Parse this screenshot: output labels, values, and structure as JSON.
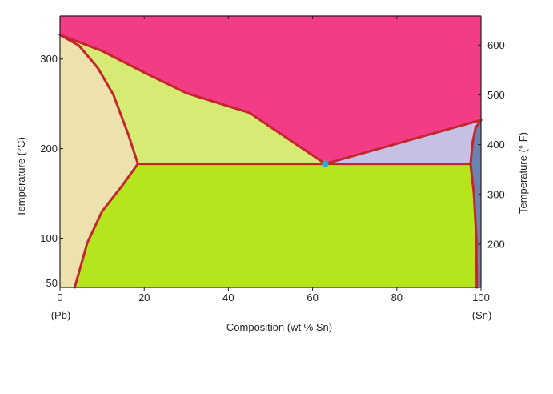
{
  "chart_data": {
    "type": "phase-diagram",
    "title": "",
    "xlabel": "Composition (wt % Sn)",
    "ylabel_left": "Temperature (°C)",
    "ylabel_right": "Temperature (° F)",
    "xlim": [
      0,
      100
    ],
    "ylim_celsius": [
      45,
      348
    ],
    "x_ticks": [
      "0",
      "20",
      "40",
      "60",
      "80",
      "100"
    ],
    "x_tick_values": [
      0,
      20,
      40,
      60,
      80,
      100
    ],
    "y_ticks_celsius": [
      "50",
      "100",
      "200",
      "300"
    ],
    "y_tick_values_celsius": [
      50,
      100,
      200,
      300
    ],
    "y_ticks_fahrenheit": [
      "200",
      "300",
      "400",
      "500",
      "600"
    ],
    "y_tick_values_fahrenheit": [
      200,
      300,
      400,
      500,
      600
    ],
    "endpoint_labels": {
      "left": "(Pb)",
      "right": "(Sn)"
    },
    "grid": false,
    "colors": {
      "liquid": "#f43b86",
      "alpha": "#ede1ae",
      "alpha_plus_liquid": "#d5eb74",
      "beta_plus_liquid": "#c6c1e4",
      "beta": "#6c82b0",
      "alpha_plus_beta": "#b5e61d",
      "boundary": "#c1272d",
      "eutectic_point": "#29abe2",
      "frame": "#231f20"
    },
    "key_points": {
      "pb_melting": {
        "composition": 0,
        "temperature_c": 327
      },
      "sn_melting": {
        "composition": 100,
        "temperature_c": 232
      },
      "eutectic": {
        "composition": 63,
        "temperature_c": 183
      },
      "alpha_max_solubility": {
        "composition": 18.5,
        "temperature_c": 183
      },
      "beta_max_solubility": {
        "composition": 97.5,
        "temperature_c": 183
      }
    },
    "regions": {
      "liquid": [
        [
          0,
          327
        ],
        [
          0,
          348
        ],
        [
          100,
          348
        ],
        [
          100,
          232
        ],
        [
          63,
          183
        ],
        [
          45,
          240
        ],
        [
          30,
          262
        ],
        [
          20,
          285
        ],
        [
          10,
          309
        ],
        [
          0,
          327
        ]
      ],
      "alpha_plus_liquid": [
        [
          0,
          327
        ],
        [
          10,
          309
        ],
        [
          20,
          285
        ],
        [
          30,
          262
        ],
        [
          45,
          240
        ],
        [
          63,
          183
        ],
        [
          18.5,
          183
        ],
        [
          16.3,
          215
        ],
        [
          12.7,
          260
        ],
        [
          9,
          290
        ],
        [
          4.5,
          315
        ],
        [
          0,
          327
        ]
      ],
      "alpha": [
        [
          0,
          327
        ],
        [
          4.5,
          315
        ],
        [
          9,
          290
        ],
        [
          12.7,
          260
        ],
        [
          16.3,
          215
        ],
        [
          18.5,
          183
        ],
        [
          15,
          160
        ],
        [
          10,
          130
        ],
        [
          6.5,
          95
        ],
        [
          3.5,
          45
        ],
        [
          0,
          45
        ]
      ],
      "alpha_plus_beta": [
        [
          18.5,
          183
        ],
        [
          97.5,
          183
        ],
        [
          98.3,
          150
        ],
        [
          98.9,
          100
        ],
        [
          99.0,
          45
        ],
        [
          3.5,
          45
        ],
        [
          6.5,
          95
        ],
        [
          10,
          130
        ],
        [
          15,
          160
        ]
      ],
      "beta_plus_liquid": [
        [
          63,
          183
        ],
        [
          100,
          232
        ],
        [
          98.7,
          223
        ],
        [
          98,
          207
        ],
        [
          97.5,
          183
        ]
      ],
      "beta": [
        [
          97.5,
          183
        ],
        [
          98,
          207
        ],
        [
          98.7,
          223
        ],
        [
          100,
          232
        ],
        [
          100,
          45
        ],
        [
          99.0,
          45
        ],
        [
          98.9,
          100
        ],
        [
          98.3,
          150
        ]
      ]
    },
    "boundaries": {
      "liquidus_left": [
        [
          0,
          327
        ],
        [
          10,
          309
        ],
        [
          20,
          285
        ],
        [
          30,
          262
        ],
        [
          45,
          240
        ],
        [
          63,
          183
        ]
      ],
      "liquidus_right": [
        [
          63,
          183
        ],
        [
          100,
          232
        ]
      ],
      "solidus_alpha": [
        [
          0,
          327
        ],
        [
          4.5,
          315
        ],
        [
          9,
          290
        ],
        [
          12.7,
          260
        ],
        [
          16.3,
          215
        ],
        [
          18.5,
          183
        ]
      ],
      "solvus_alpha": [
        [
          18.5,
          183
        ],
        [
          15,
          160
        ],
        [
          10,
          130
        ],
        [
          6.5,
          95
        ],
        [
          3.5,
          45
        ]
      ],
      "eutectic_isotherm": [
        [
          18.5,
          183
        ],
        [
          97.5,
          183
        ]
      ],
      "solidus_beta": [
        [
          97.5,
          183
        ],
        [
          98,
          207
        ],
        [
          98.7,
          223
        ],
        [
          100,
          232
        ]
      ],
      "solvus_beta": [
        [
          97.5,
          183
        ],
        [
          98.3,
          150
        ],
        [
          98.9,
          100
        ],
        [
          99.0,
          45
        ]
      ]
    }
  }
}
